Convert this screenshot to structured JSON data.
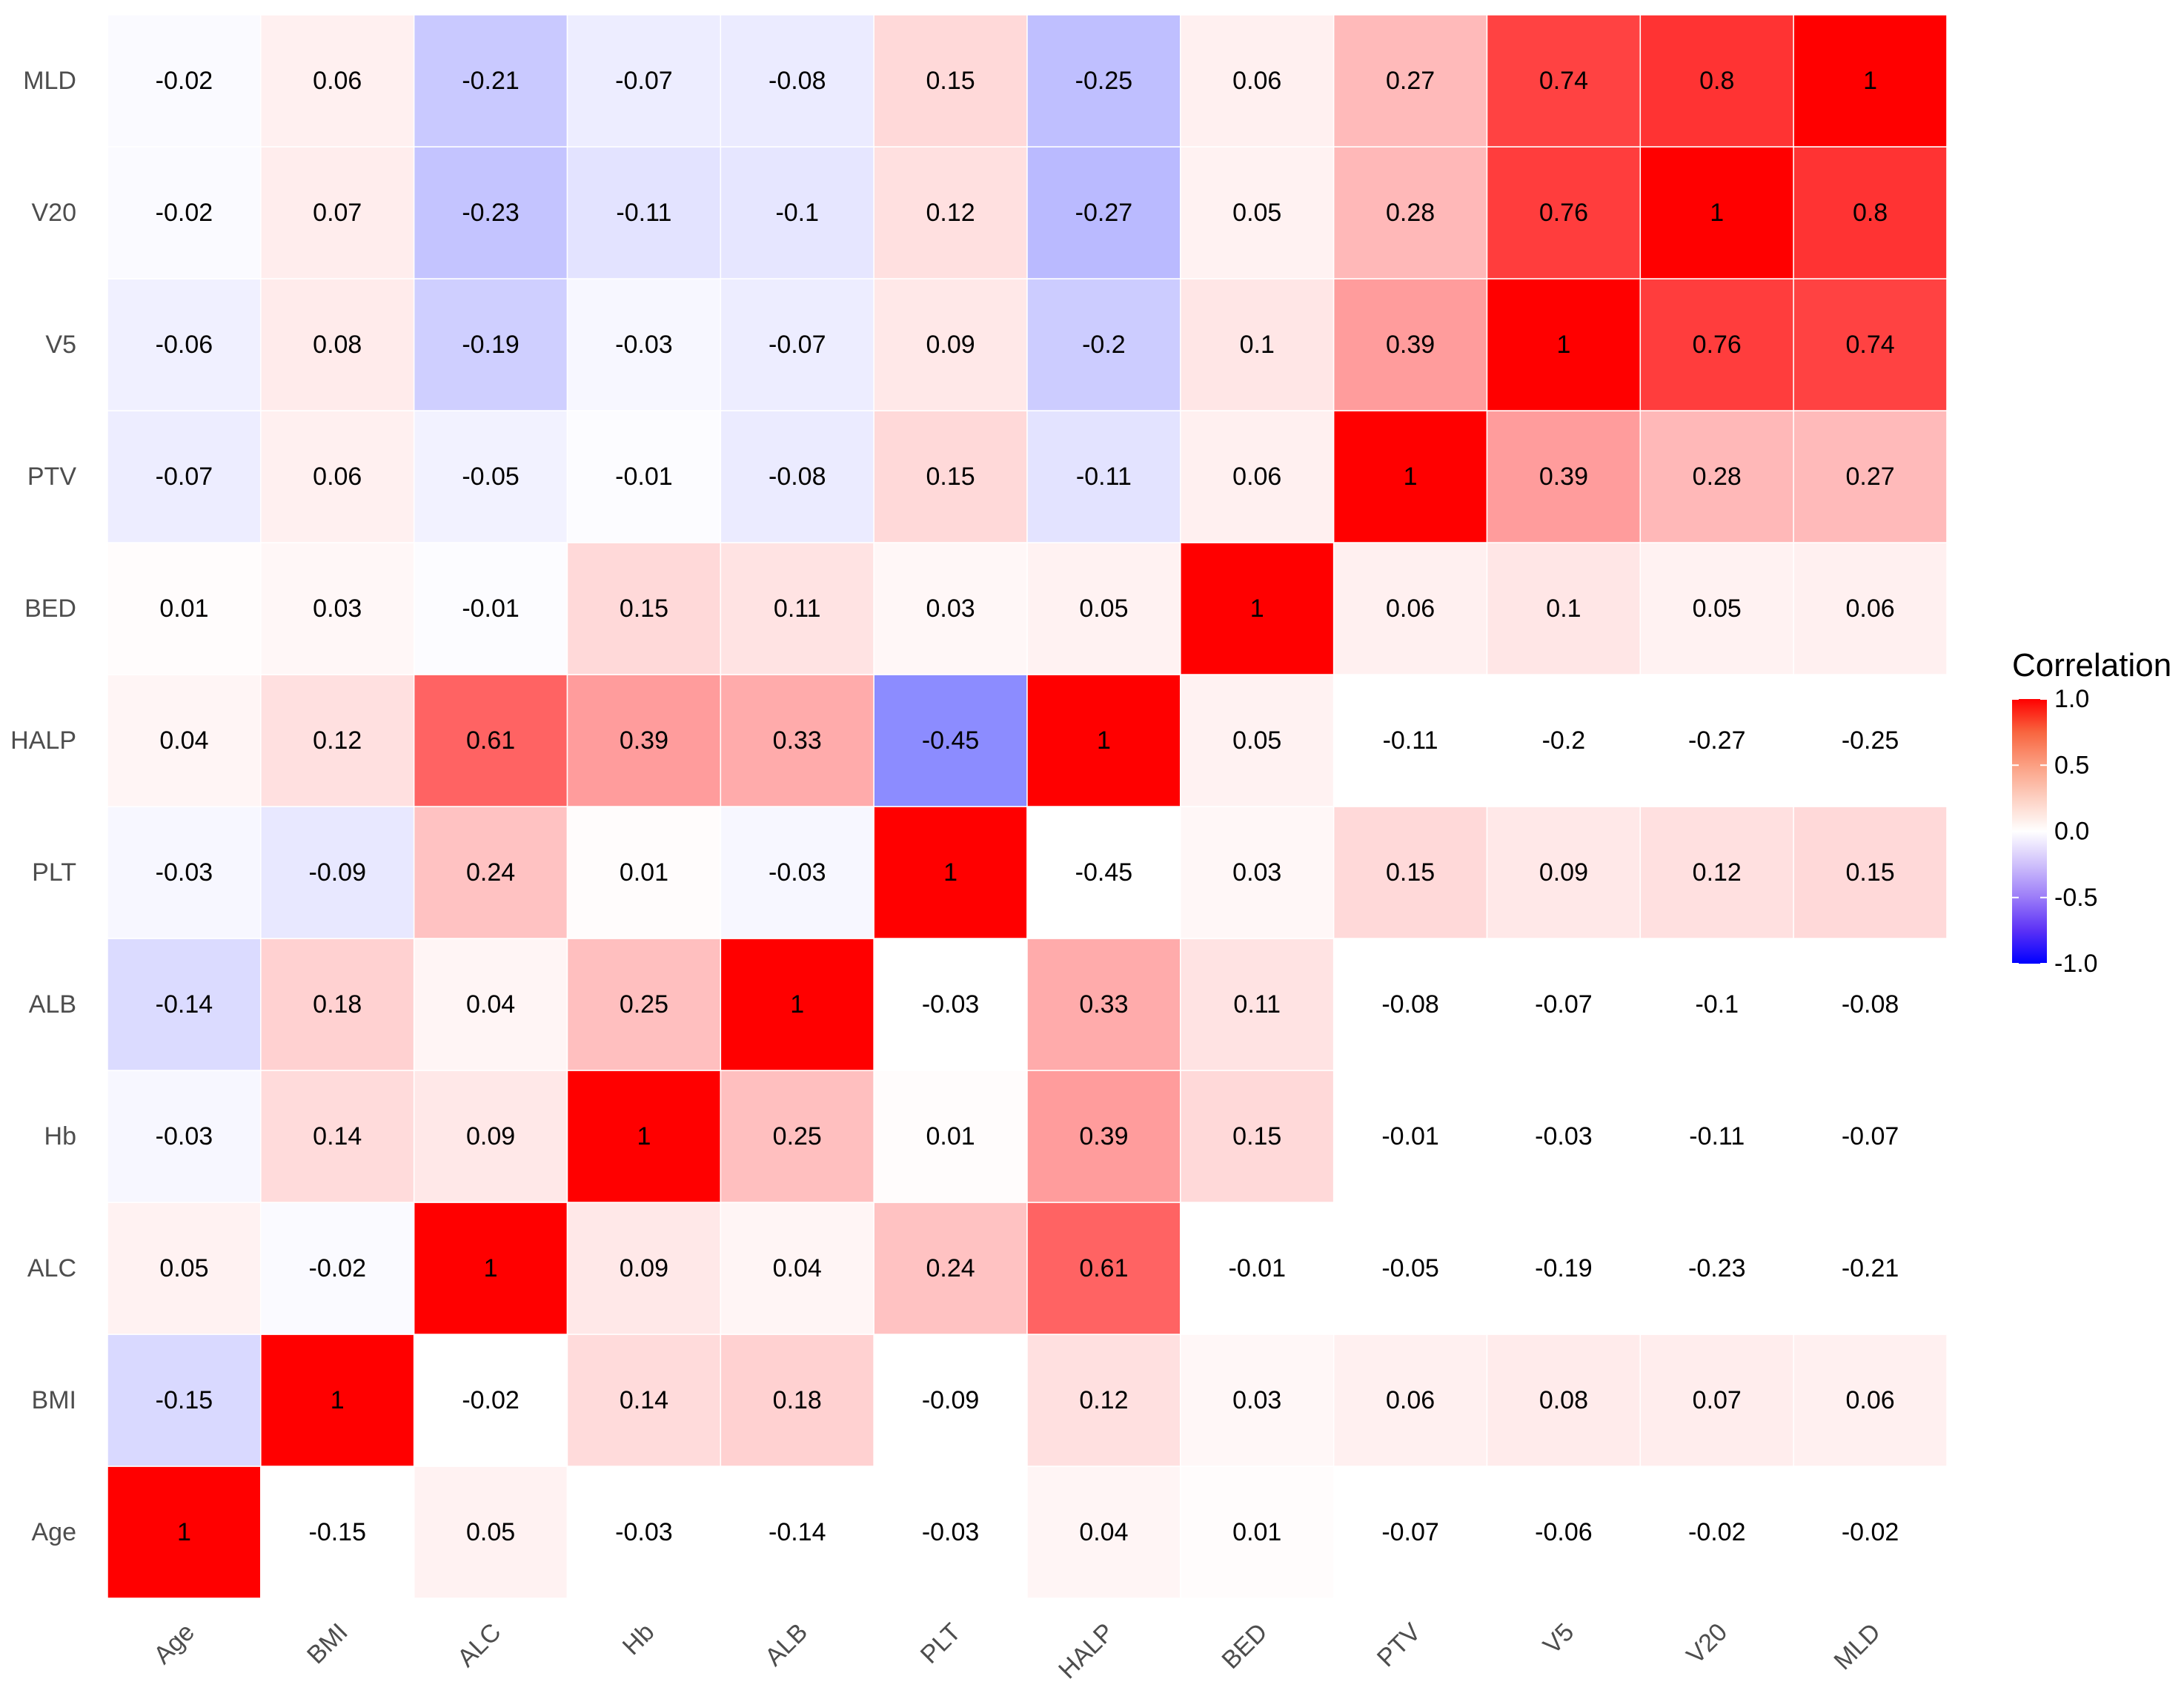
{
  "chart_data": {
    "type": "heatmap",
    "x_labels": [
      "Age",
      "BMI",
      "ALC",
      "Hb",
      "ALB",
      "PLT",
      "HALP",
      "BED",
      "PTV",
      "V5",
      "V20",
      "MLD"
    ],
    "y_labels": [
      "Age",
      "BMI",
      "ALC",
      "Hb",
      "ALB",
      "PLT",
      "HALP",
      "BED",
      "PTV",
      "V5",
      "V20",
      "MLD"
    ],
    "matrix": [
      [
        1,
        -0.15,
        0.05,
        -0.03,
        -0.14,
        -0.03,
        0.04,
        0.01,
        -0.07,
        -0.06,
        -0.02,
        -0.02
      ],
      [
        -0.15,
        1,
        -0.02,
        0.14,
        0.18,
        -0.09,
        0.12,
        0.03,
        0.06,
        0.08,
        0.07,
        0.06
      ],
      [
        0.05,
        -0.02,
        1,
        0.09,
        0.04,
        0.24,
        0.61,
        -0.01,
        -0.05,
        -0.19,
        -0.23,
        -0.21
      ],
      [
        -0.03,
        0.14,
        0.09,
        1,
        0.25,
        0.01,
        0.39,
        0.15,
        -0.01,
        -0.03,
        -0.11,
        -0.07
      ],
      [
        -0.14,
        0.18,
        0.04,
        0.25,
        1,
        -0.03,
        0.33,
        0.11,
        -0.08,
        -0.07,
        -0.1,
        -0.08
      ],
      [
        -0.03,
        -0.09,
        0.24,
        0.01,
        -0.03,
        1,
        -0.45,
        0.03,
        0.15,
        0.09,
        0.12,
        0.15
      ],
      [
        0.04,
        0.12,
        0.61,
        0.39,
        0.33,
        -0.45,
        1,
        0.05,
        -0.11,
        -0.2,
        -0.27,
        -0.25
      ],
      [
        0.01,
        0.03,
        -0.01,
        0.15,
        0.11,
        0.03,
        0.05,
        1,
        0.06,
        0.1,
        0.05,
        0.06
      ],
      [
        -0.07,
        0.06,
        -0.05,
        -0.01,
        -0.08,
        0.15,
        -0.11,
        0.06,
        1,
        0.39,
        0.28,
        0.27
      ],
      [
        -0.06,
        0.08,
        -0.19,
        -0.03,
        -0.07,
        0.09,
        -0.2,
        0.1,
        0.39,
        1,
        0.76,
        0.74
      ],
      [
        -0.02,
        0.07,
        -0.23,
        -0.11,
        -0.1,
        0.12,
        -0.27,
        0.05,
        0.28,
        0.76,
        1,
        0.8
      ],
      [
        -0.02,
        0.06,
        -0.21,
        -0.07,
        -0.08,
        0.15,
        -0.25,
        0.06,
        0.27,
        0.74,
        0.8,
        1
      ]
    ],
    "mask": "upper-triangle cells with value below zero are blank",
    "color_scale": {
      "low_color": "#0000ff",
      "mid_color": "#ffffff",
      "high_color": "#ff0000",
      "range": [
        -1.0,
        1.0
      ]
    },
    "legend": {
      "title": "Correlation",
      "ticks": [
        "1.0",
        "0.5",
        "0.0",
        "-0.5",
        "-1.0"
      ],
      "placement": "right"
    },
    "grid": false
  }
}
